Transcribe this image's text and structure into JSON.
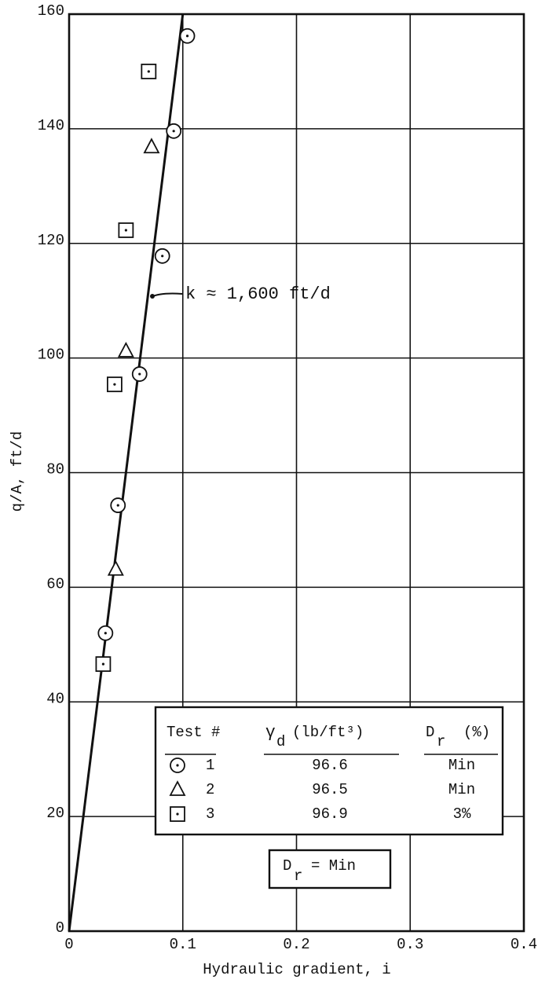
{
  "chart_data": {
    "type": "scatter",
    "x_label": "Hydraulic gradient, i",
    "y_label": "q/A, ft/d",
    "xlim": [
      0,
      0.4
    ],
    "ylim": [
      0,
      160
    ],
    "xticks": [
      0,
      0.1,
      0.2,
      0.3,
      0.4
    ],
    "yticks": [
      0,
      20,
      40,
      60,
      80,
      100,
      120,
      140,
      160
    ],
    "grid": true,
    "series": [
      {
        "name": "1",
        "marker": "circle",
        "color": "#111",
        "x": [
          0.032,
          0.043,
          0.062,
          0.082,
          0.092,
          0.104
        ],
        "values": [
          52,
          74.3,
          97.2,
          117.8,
          139.6,
          156.2
        ]
      },
      {
        "name": "2",
        "marker": "triangle",
        "color": "#111",
        "x": [
          0.041,
          0.05,
          0.0725
        ],
        "values": [
          63.1,
          101.2,
          136.8
        ]
      },
      {
        "name": "3",
        "marker": "square",
        "color": "#111",
        "x": [
          0.03,
          0.04,
          0.05,
          0.07
        ],
        "values": [
          46.6,
          95.4,
          122.3,
          150
        ]
      }
    ],
    "fit_line": {
      "x": [
        0,
        0.1
      ],
      "values": [
        0,
        160
      ],
      "label": "k ≈ 1,600 ft/d"
    },
    "legend": {
      "headers": {
        "test": "Test #",
        "gamma": "γ",
        "gamma_sub": "d",
        "gamma_unit": "(lb/ft³)",
        "dr": "D",
        "dr_sub": "r",
        "dr_unit": "(%)"
      },
      "rows": [
        [
          "96.6",
          "Min"
        ],
        [
          "96.5",
          "Min"
        ],
        [
          "96.9",
          "3%"
        ]
      ]
    },
    "note": {
      "symbol": "D",
      "sub": "r",
      "text": "= Min"
    }
  }
}
